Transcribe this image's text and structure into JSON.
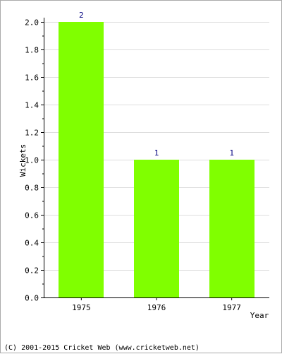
{
  "chart_data": {
    "type": "bar",
    "categories": [
      "1975",
      "1976",
      "1977"
    ],
    "values": [
      2,
      1,
      1
    ],
    "data_labels": [
      "2",
      "1",
      "1"
    ],
    "xlabel": "Year",
    "ylabel": "Wickets",
    "ylim": [
      0,
      2
    ],
    "yticks": [
      "0.0",
      "0.2",
      "0.4",
      "0.6",
      "0.8",
      "1.0",
      "1.2",
      "1.4",
      "1.6",
      "1.8",
      "2.0"
    ],
    "ytick_values": [
      0,
      0.2,
      0.4,
      0.6,
      0.8,
      1.0,
      1.2,
      1.4,
      1.6,
      1.8,
      2.0
    ],
    "grid": true,
    "bar_color": "#80ff00",
    "label_color": "#000080"
  },
  "footer": {
    "copyright": "(C) 2001-2015 Cricket Web (www.cricketweb.net)"
  }
}
